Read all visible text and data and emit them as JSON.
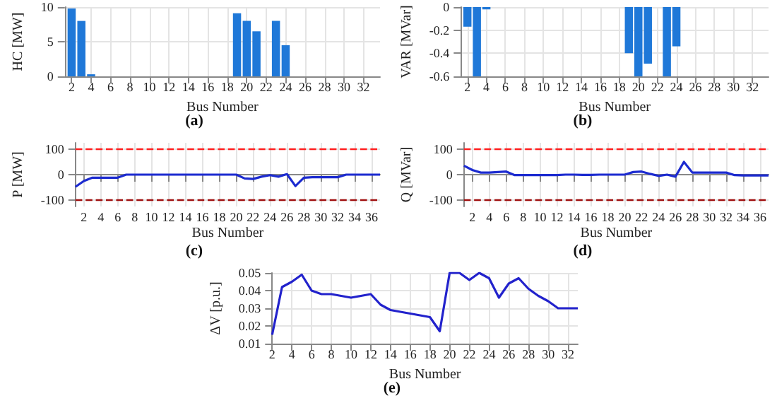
{
  "chart_data": [
    {
      "type": "bar",
      "title": "(a)",
      "xlabel": "Bus Number",
      "ylabel": "HC [MW]",
      "x": [
        2,
        3,
        4,
        5,
        6,
        7,
        8,
        9,
        10,
        11,
        12,
        13,
        14,
        15,
        16,
        17,
        18,
        19,
        20,
        21,
        22,
        23,
        24,
        25,
        26,
        27,
        28,
        29,
        30,
        31,
        32,
        33
      ],
      "xlim": [
        1.3,
        33.7
      ],
      "xticks": [
        2,
        4,
        6,
        8,
        10,
        12,
        14,
        16,
        18,
        20,
        22,
        24,
        26,
        28,
        30,
        32
      ],
      "values": [
        9.8,
        8,
        0.3,
        0,
        0,
        0,
        0,
        0,
        0,
        0,
        0,
        0,
        0,
        0,
        0,
        0,
        0,
        9.1,
        8,
        6.5,
        0,
        8,
        4.5,
        0,
        0,
        0,
        0,
        0,
        0,
        0,
        0,
        0
      ],
      "color": "#1f78d8",
      "ylim": [
        0,
        10
      ],
      "yticks": [
        0,
        5,
        10
      ],
      "grid": true
    },
    {
      "type": "bar",
      "title": "(b)",
      "xlabel": "Bus Number",
      "ylabel": "VAR [MVar]",
      "x": [
        2,
        3,
        4,
        5,
        6,
        7,
        8,
        9,
        10,
        11,
        12,
        13,
        14,
        15,
        16,
        17,
        18,
        19,
        20,
        21,
        22,
        23,
        24,
        25,
        26,
        27,
        28,
        29,
        30,
        31,
        32,
        33
      ],
      "xlim": [
        1.3,
        33.7
      ],
      "xticks": [
        2,
        4,
        6,
        8,
        10,
        12,
        14,
        16,
        18,
        20,
        22,
        24,
        26,
        28,
        30,
        32
      ],
      "values": [
        -0.17,
        -0.6,
        -0.02,
        0,
        0,
        0,
        0,
        0,
        0,
        0,
        0,
        0,
        0,
        0,
        0,
        0,
        0,
        -0.4,
        -0.6,
        -0.49,
        0,
        -0.6,
        -0.34,
        0,
        0,
        0,
        0,
        0,
        0,
        0,
        0,
        0
      ],
      "color": "#1f78d8",
      "ylim": [
        -0.6,
        0
      ],
      "yticks": [
        -0.6,
        -0.4,
        -0.2,
        0
      ],
      "grid": true
    },
    {
      "type": "line",
      "title": "(c)",
      "xlabel": "Bus Number",
      "ylabel": "P [MW]",
      "x": [
        1,
        2,
        3,
        4,
        5,
        6,
        7,
        8,
        9,
        10,
        11,
        12,
        13,
        14,
        15,
        16,
        17,
        18,
        19,
        20,
        21,
        22,
        23,
        24,
        25,
        26,
        27,
        28,
        29,
        30,
        31,
        32,
        33,
        34,
        35,
        36,
        37
      ],
      "values": [
        -48,
        -25,
        -12,
        -12,
        -12,
        -12,
        0,
        0,
        0,
        0,
        0,
        0,
        0,
        0,
        0,
        0,
        0,
        0,
        0,
        0,
        -15,
        -17,
        -8,
        -2,
        -8,
        2,
        -45,
        -12,
        -10,
        -10,
        -10,
        -10,
        0,
        0,
        0,
        0,
        0
      ],
      "color": "#1c2bd0",
      "xlim": [
        1,
        37
      ],
      "xticks": [
        2,
        4,
        6,
        8,
        10,
        12,
        14,
        16,
        18,
        20,
        22,
        24,
        26,
        28,
        30,
        32,
        34,
        36
      ],
      "ylim": [
        -125,
        125
      ],
      "yticks": [
        -100,
        0,
        100
      ],
      "grid": true,
      "ref_lines": [
        {
          "axis": "y",
          "value": 100,
          "label": null,
          "color": "#ff2020",
          "line_style": "dashed"
        },
        {
          "axis": "y",
          "value": -100,
          "label": null,
          "color": "#a01010",
          "line_style": "dashed"
        }
      ]
    },
    {
      "type": "line",
      "title": "(d)",
      "xlabel": "Bus Number",
      "ylabel": "Q [MVar]",
      "x": [
        1,
        2,
        3,
        4,
        5,
        6,
        7,
        8,
        9,
        10,
        11,
        12,
        13,
        14,
        15,
        16,
        17,
        18,
        19,
        20,
        21,
        22,
        23,
        24,
        25,
        26,
        27,
        28,
        29,
        30,
        31,
        32,
        33,
        34,
        35,
        36,
        37
      ],
      "values": [
        35,
        18,
        8,
        8,
        10,
        12,
        -2,
        -2,
        -2,
        -2,
        -2,
        -2,
        0,
        0,
        -1,
        -1,
        0,
        0,
        0,
        0,
        10,
        12,
        3,
        -5,
        0,
        -8,
        50,
        8,
        8,
        8,
        8,
        8,
        -2,
        -3,
        -3,
        -3,
        -3
      ],
      "color": "#1c2bd0",
      "xlim": [
        1,
        37
      ],
      "xticks": [
        2,
        4,
        6,
        8,
        10,
        12,
        14,
        16,
        18,
        20,
        22,
        24,
        26,
        28,
        30,
        32,
        34,
        36
      ],
      "ylim": [
        -125,
        125
      ],
      "yticks": [
        -100,
        0,
        100
      ],
      "grid": true,
      "ref_lines": [
        {
          "axis": "y",
          "value": 100,
          "label": null,
          "color": "#ff2020",
          "line_style": "dashed"
        },
        {
          "axis": "y",
          "value": -100,
          "label": null,
          "color": "#a01010",
          "line_style": "dashed"
        }
      ]
    },
    {
      "type": "line",
      "title": "(e)",
      "xlabel": "Bus Number",
      "ylabel": "ΔV [p.u.]",
      "x": [
        2,
        3,
        4,
        5,
        6,
        7,
        8,
        9,
        10,
        11,
        12,
        13,
        14,
        15,
        16,
        17,
        18,
        19,
        20,
        21,
        22,
        23,
        24,
        25,
        26,
        27,
        28,
        29,
        30,
        31,
        32,
        33
      ],
      "values": [
        0.015,
        0.042,
        0.045,
        0.049,
        0.04,
        0.038,
        0.038,
        0.037,
        0.036,
        0.037,
        0.038,
        0.032,
        0.029,
        0.028,
        0.027,
        0.026,
        0.025,
        0.017,
        0.05,
        0.05,
        0.046,
        0.05,
        0.047,
        0.036,
        0.044,
        0.047,
        0.041,
        0.037,
        0.034,
        0.03,
        0.03,
        0.03
      ],
      "color": "#2222cc",
      "xlim": [
        2,
        33
      ],
      "xticks": [
        2,
        4,
        6,
        8,
        10,
        12,
        14,
        16,
        18,
        20,
        22,
        24,
        26,
        28,
        30,
        32
      ],
      "ylim": [
        0.01,
        0.05
      ],
      "yticks": [
        0.01,
        0.02,
        0.03,
        0.04,
        0.05
      ],
      "grid": true
    }
  ]
}
